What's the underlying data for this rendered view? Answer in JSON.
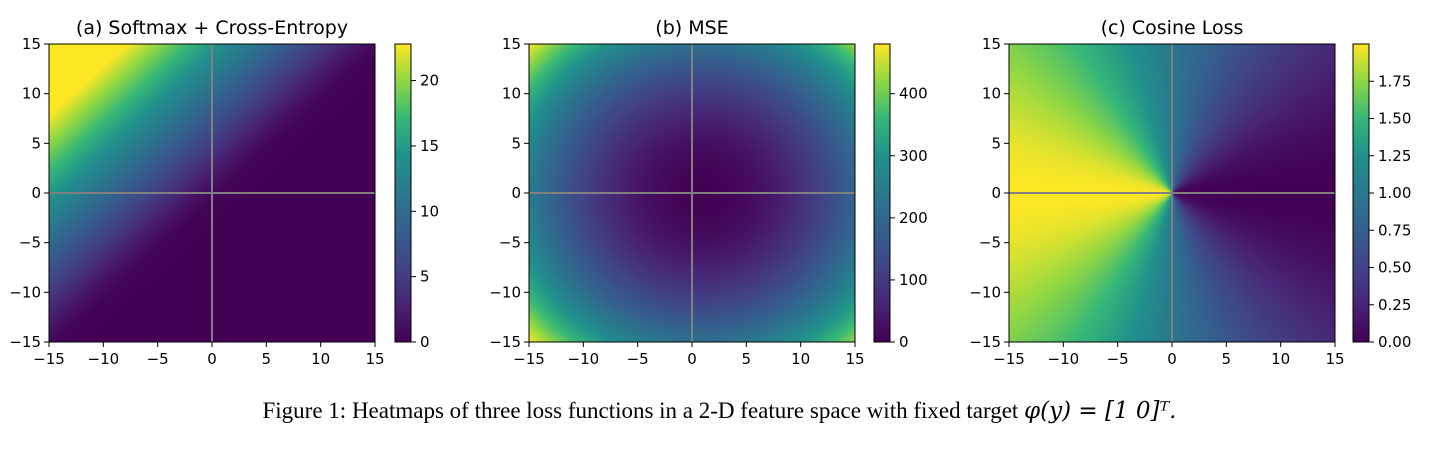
{
  "figure": {
    "caption": "Figure 1: Heatmaps of three loss functions in a 2-D feature space with fixed target φ(y) = [1    0]ᵀ.",
    "caption_lead": "Figure 1: Heatmaps of three loss functions in a 2-D feature space with fixed target",
    "caption_math": "φ(y) = [1    0]ᵀ."
  },
  "chart_data": [
    {
      "type": "heatmap",
      "loss": "softmax-cross-entropy",
      "title": "(a) Softmax + Cross-Entropy",
      "xlabel": "",
      "ylabel": "",
      "xlim": [
        -15,
        15
      ],
      "ylim": [
        -15,
        15
      ],
      "xticks": [
        -15,
        -10,
        -5,
        0,
        5,
        10,
        15
      ],
      "yticks": [
        -15,
        -10,
        -5,
        0,
        5,
        10,
        15
      ],
      "xtick_labels": [
        "−15",
        "−10",
        "−5",
        "0",
        "5",
        "10",
        "15"
      ],
      "ytick_labels": [
        "−15",
        "−10",
        "−5",
        "0",
        "5",
        "10",
        "15"
      ],
      "colormap": "viridis",
      "crosshair_lines": [
        0,
        0
      ],
      "colorbar": {
        "range": [
          0,
          22.8
        ],
        "ticks": [
          0,
          5,
          10,
          15,
          20
        ],
        "tick_labels": [
          "0",
          "5",
          "10",
          "15",
          "20"
        ]
      }
    },
    {
      "type": "heatmap",
      "loss": "mse",
      "title": "(b) MSE",
      "xlabel": "",
      "ylabel": "",
      "xlim": [
        -15,
        15
      ],
      "ylim": [
        -15,
        15
      ],
      "xticks": [
        -15,
        -10,
        -5,
        0,
        5,
        10,
        15
      ],
      "yticks": [
        -15,
        -10,
        -5,
        0,
        5,
        10,
        15
      ],
      "xtick_labels": [
        "−15",
        "−10",
        "−5",
        "0",
        "5",
        "10",
        "15"
      ],
      "ytick_labels": [
        "−15",
        "−10",
        "−5",
        "0",
        "5",
        "10",
        "15"
      ],
      "colormap": "viridis",
      "crosshair_lines": [
        0,
        0
      ],
      "colorbar": {
        "range": [
          0,
          480
        ],
        "ticks": [
          0,
          100,
          200,
          300,
          400
        ],
        "tick_labels": [
          "0",
          "100",
          "200",
          "300",
          "400"
        ]
      }
    },
    {
      "type": "heatmap",
      "loss": "cosine",
      "title": "(c) Cosine Loss",
      "xlabel": "",
      "ylabel": "",
      "xlim": [
        -15,
        15
      ],
      "ylim": [
        -15,
        15
      ],
      "xticks": [
        -15,
        -10,
        -5,
        0,
        5,
        10,
        15
      ],
      "yticks": [
        -15,
        -10,
        -5,
        0,
        5,
        10,
        15
      ],
      "xtick_labels": [
        "−15",
        "−10",
        "−5",
        "0",
        "5",
        "10",
        "15"
      ],
      "ytick_labels": [
        "−15",
        "−10",
        "−5",
        "0",
        "5",
        "10",
        "15"
      ],
      "colormap": "viridis",
      "crosshair_lines": [
        0,
        0
      ],
      "colorbar": {
        "range": [
          0,
          2
        ],
        "ticks": [
          0,
          0.25,
          0.5,
          0.75,
          1.0,
          1.25,
          1.5,
          1.75
        ],
        "tick_labels": [
          "0.00",
          "0.25",
          "0.50",
          "0.75",
          "1.00",
          "1.25",
          "1.50",
          "1.75"
        ]
      }
    }
  ]
}
